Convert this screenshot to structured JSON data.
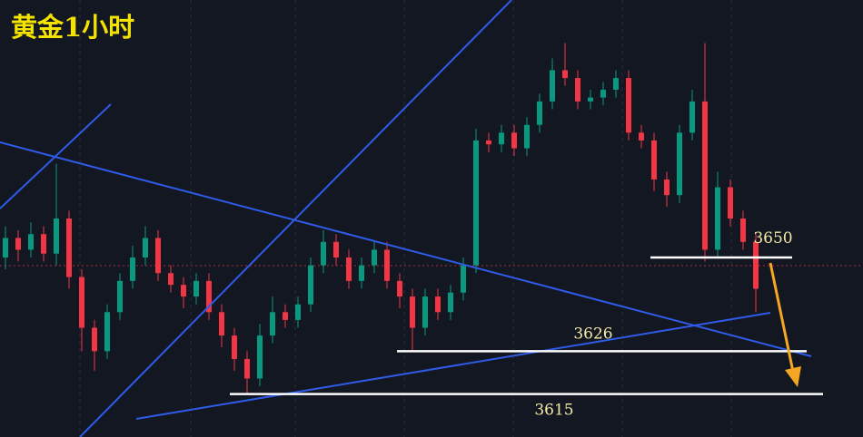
{
  "chart_data": {
    "type": "candlestick",
    "title": "黄金1小时",
    "ylim": [
      3604,
      3716
    ],
    "up_color": "#089981",
    "down_color": "#f23645",
    "open": [
      3650,
      3655,
      3652,
      3656,
      3651,
      3660,
      3645,
      3632,
      3626,
      3636,
      3644,
      3650,
      3655,
      3646,
      3643,
      3640,
      3644,
      3636,
      3630,
      3624,
      3619,
      3630,
      3636,
      3634,
      3638,
      3648,
      3654,
      3650,
      3644,
      3648,
      3652,
      3644,
      3640,
      3632,
      3640,
      3636,
      3641,
      3648,
      3680,
      3679,
      3682,
      3678,
      3684,
      3690,
      3698,
      3696,
      3690,
      3691,
      3693,
      3696,
      3682,
      3680,
      3670,
      3666,
      3682,
      3690,
      3652,
      3668,
      3660,
      3654
    ],
    "high": [
      3658,
      3657,
      3659,
      3658,
      3674,
      3662,
      3647,
      3634,
      3638,
      3646,
      3653,
      3658,
      3657,
      3648,
      3645,
      3646,
      3646,
      3638,
      3632,
      3626,
      3633,
      3640,
      3638,
      3640,
      3650,
      3657,
      3656,
      3652,
      3650,
      3654,
      3654,
      3646,
      3642,
      3642,
      3642,
      3643,
      3650,
      3683,
      3682,
      3684,
      3684,
      3686,
      3692,
      3701,
      3705,
      3698,
      3693,
      3695,
      3698,
      3698,
      3684,
      3682,
      3672,
      3684,
      3693,
      3705,
      3672,
      3670,
      3662,
      3656
    ],
    "low": [
      3647,
      3649,
      3650,
      3649,
      3648,
      3642,
      3626,
      3621,
      3624,
      3634,
      3642,
      3648,
      3644,
      3641,
      3637,
      3638,
      3634,
      3627,
      3621,
      3615,
      3617,
      3628,
      3632,
      3632,
      3636,
      3646,
      3648,
      3642,
      3642,
      3646,
      3642,
      3637,
      3626,
      3630,
      3634,
      3634,
      3639,
      3646,
      3677,
      3677,
      3676,
      3676,
      3682,
      3688,
      3694,
      3688,
      3688,
      3689,
      3691,
      3680,
      3678,
      3667,
      3663,
      3664,
      3680,
      3649,
      3650,
      3658,
      3652,
      3636
    ],
    "close": [
      3655,
      3652,
      3656,
      3651,
      3660,
      3645,
      3632,
      3626,
      3636,
      3644,
      3650,
      3655,
      3646,
      3643,
      3640,
      3644,
      3636,
      3630,
      3624,
      3619,
      3630,
      3636,
      3634,
      3638,
      3648,
      3654,
      3650,
      3644,
      3648,
      3652,
      3644,
      3640,
      3632,
      3640,
      3636,
      3641,
      3648,
      3680,
      3679,
      3682,
      3678,
      3684,
      3690,
      3698,
      3696,
      3690,
      3691,
      3693,
      3696,
      3682,
      3680,
      3670,
      3666,
      3682,
      3690,
      3652,
      3668,
      3660,
      3654,
      3642
    ],
    "levels": [
      3650,
      3626,
      3615
    ]
  }
}
